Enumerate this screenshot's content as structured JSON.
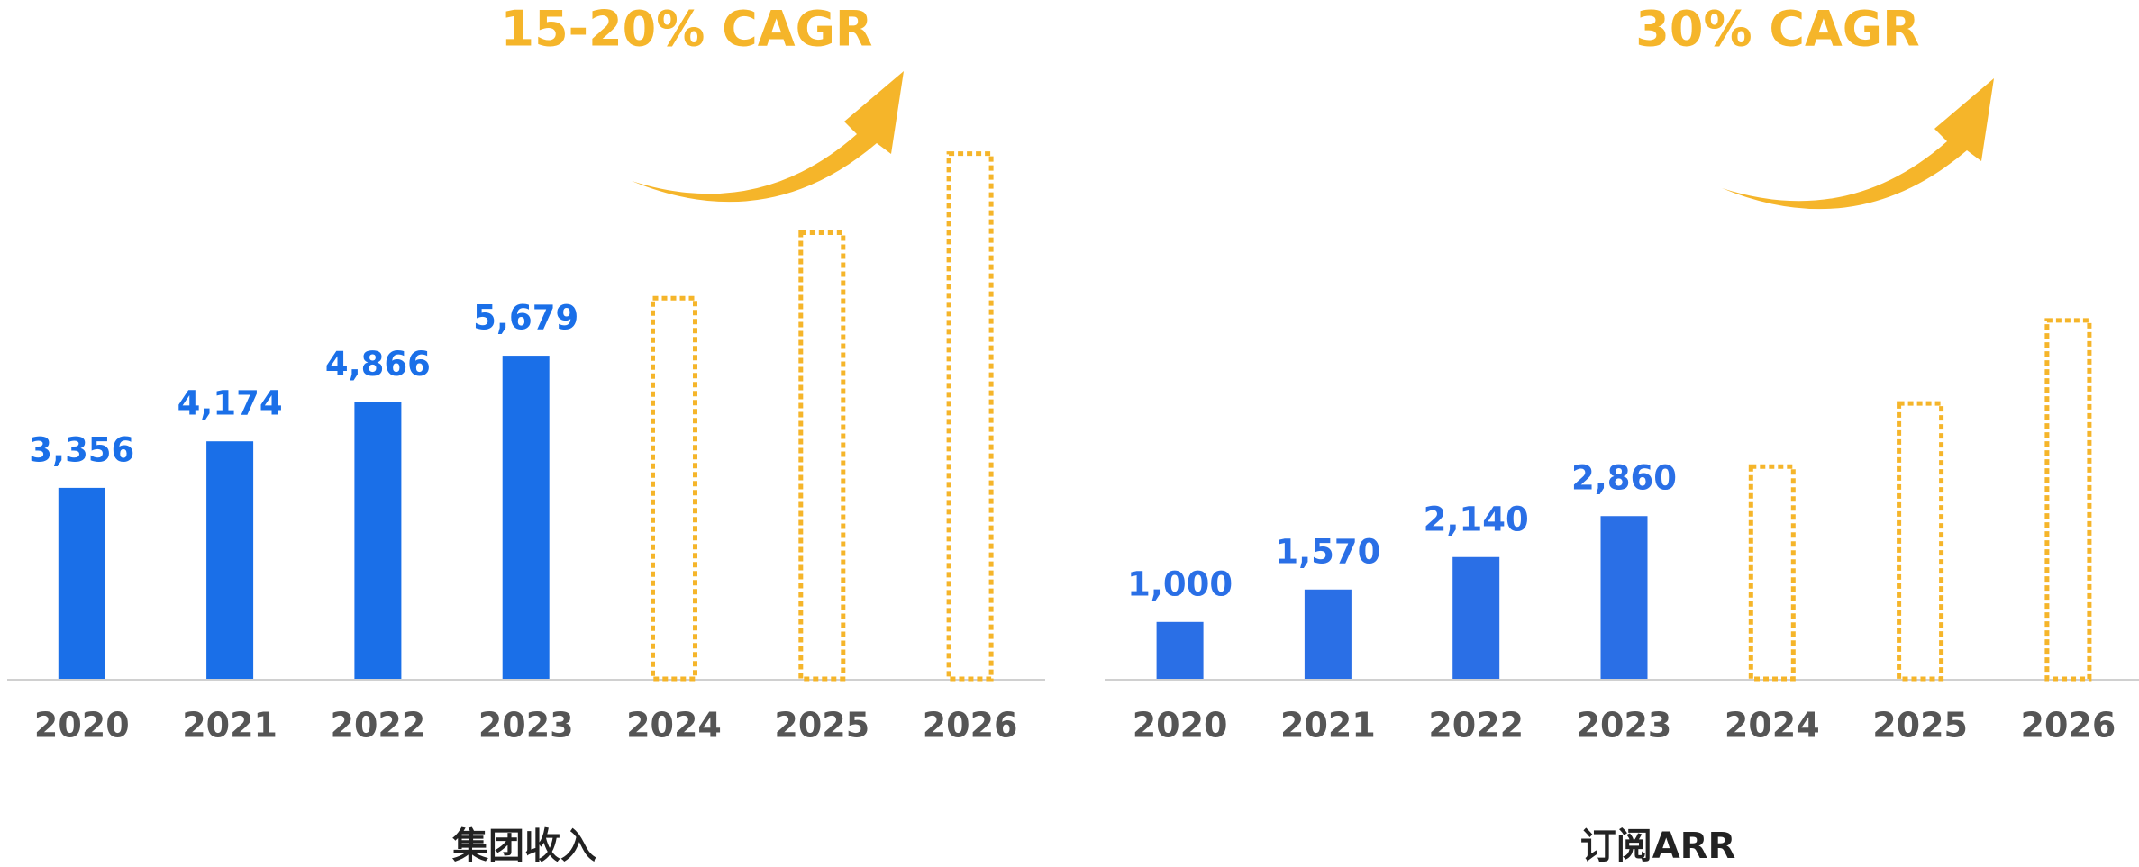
{
  "chart_data": [
    {
      "type": "bar",
      "title": "集团收入",
      "annotation": "15-20% CAGR",
      "categories": [
        "2020",
        "2021",
        "2022",
        "2023",
        "2024",
        "2025",
        "2026"
      ],
      "values": [
        3356,
        4174,
        4866,
        5679,
        null,
        null,
        null
      ],
      "value_labels": [
        "3,356",
        "4,174",
        "4,866",
        "5,679",
        null,
        null,
        null
      ],
      "projected_values": [
        null,
        null,
        null,
        null,
        6690,
        7840,
        9230
      ],
      "color": "#1a6fe8",
      "projected_color": "#f5b52a",
      "annotation_color": "#f5b52a",
      "ylim": [
        0,
        10000
      ]
    },
    {
      "type": "bar",
      "title": "订阅ARR",
      "annotation": "30% CAGR",
      "categories": [
        "2020",
        "2021",
        "2022",
        "2023",
        "2024",
        "2025",
        "2026"
      ],
      "values": [
        1000,
        1570,
        2140,
        2860,
        null,
        null,
        null
      ],
      "value_labels": [
        "1,000",
        "1,570",
        "2,140",
        "2,860",
        null,
        null,
        null
      ],
      "projected_values": [
        null,
        null,
        null,
        null,
        3730,
        4840,
        6300
      ],
      "color": "#2a6fe6",
      "projected_color": "#f5b52a",
      "annotation_color": "#f5b52a",
      "ylim": [
        0,
        10000
      ]
    }
  ]
}
